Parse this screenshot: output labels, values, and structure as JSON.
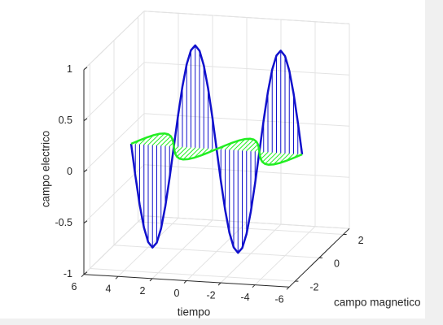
{
  "chart_data": {
    "type": "line3d",
    "xlabel": "tiempo",
    "ylabel": "campo magnetico",
    "zlabel": "campo electrico",
    "xlim": [
      -6,
      6
    ],
    "ylim": [
      -2.5,
      2.5
    ],
    "zlim": [
      -1,
      1
    ],
    "xticks": [
      -6,
      -4,
      -2,
      0,
      2,
      4,
      6
    ],
    "yticks": [
      -2,
      0,
      2
    ],
    "zticks": [
      -1,
      -0.5,
      0,
      0.5,
      1
    ],
    "grid": true,
    "x": [
      -5,
      -4.75,
      -4.5,
      -4.25,
      -4,
      -3.75,
      -3.5,
      -3.25,
      -3,
      -2.75,
      -2.5,
      -2.25,
      -2,
      -1.75,
      -1.5,
      -1.25,
      -1,
      -0.75,
      -0.5,
      -0.25,
      0,
      0.25,
      0.5,
      0.75,
      1,
      1.25,
      1.5,
      1.75,
      2,
      2.25,
      2.5,
      2.75,
      3,
      3.25,
      3.5,
      3.75,
      4,
      4.25,
      4.5,
      4.75,
      5
    ],
    "series": [
      {
        "color": "#1010cc",
        "z": [
          0,
          0.31,
          0.59,
          0.81,
          0.95,
          1,
          0.95,
          0.81,
          0.59,
          0.31,
          0,
          -0.31,
          -0.59,
          -0.81,
          -0.95,
          -1,
          -0.95,
          -0.81,
          -0.59,
          -0.31,
          0,
          0.31,
          0.59,
          0.81,
          0.95,
          1,
          0.95,
          0.81,
          0.59,
          0.31,
          0,
          -0.31,
          -0.59,
          -0.81,
          -0.95,
          -1,
          -0.95,
          -0.81,
          -0.59,
          -0.31,
          0
        ]
      },
      {
        "color": "#22ee22",
        "y": [
          0,
          -0.31,
          -0.59,
          -0.81,
          -0.95,
          -1,
          -0.95,
          -0.81,
          -0.59,
          -0.31,
          0,
          0.31,
          0.59,
          0.81,
          0.95,
          1,
          0.95,
          0.81,
          0.59,
          0.31,
          0,
          -0.31,
          -0.59,
          -0.81,
          -0.95,
          -1,
          -0.95,
          -0.81,
          -0.59,
          -0.31,
          0,
          0.31,
          0.59,
          0.81,
          0.95,
          1,
          0.95,
          0.81,
          0.59,
          0.31,
          0
        ]
      }
    ]
  }
}
